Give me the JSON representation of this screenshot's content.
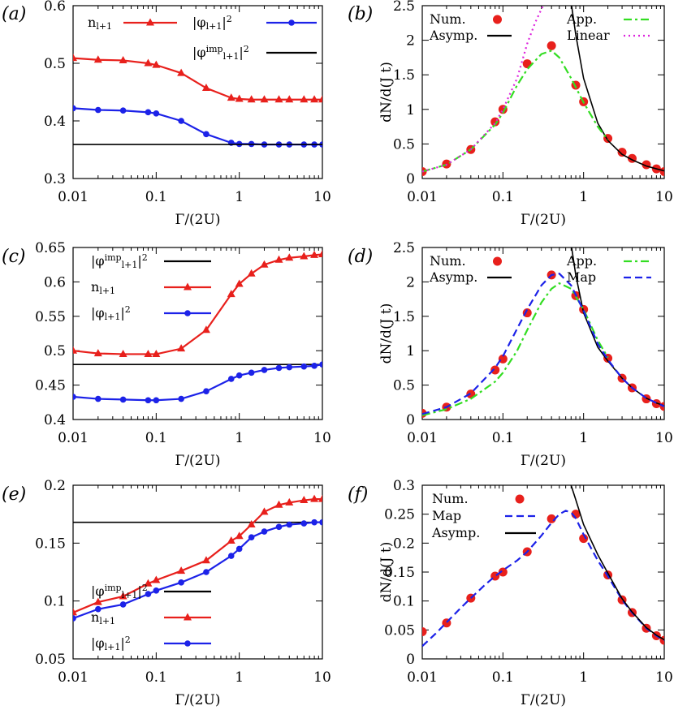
{
  "chart_data": [
    {
      "panel_label": "(a)",
      "type": "line",
      "xscale": "log",
      "xlim": [
        0.01,
        10
      ],
      "ylim": [
        0.3,
        0.6
      ],
      "xticks": [
        "0.01",
        "0.1",
        "1",
        "10"
      ],
      "yticks": [
        "0.3",
        "0.4",
        "0.5",
        "0.6"
      ],
      "xlabel": "Γ/(2U)",
      "ylabel": "",
      "legend": [
        "n_{l+1}",
        "|φ_{l+1}|^2",
        "|φ^{imp}_{l+1}|^2"
      ],
      "series": [
        {
          "name": "n_{l+1}",
          "color": "#e8201c",
          "marker": "triangle",
          "x": [
            0.01,
            0.02,
            0.04,
            0.08,
            0.1,
            0.2,
            0.4,
            0.8,
            1,
            1.4,
            2,
            3,
            4,
            6,
            8,
            10
          ],
          "y": [
            0.509,
            0.506,
            0.505,
            0.5,
            0.497,
            0.483,
            0.457,
            0.44,
            0.438,
            0.437,
            0.437,
            0.437,
            0.437,
            0.437,
            0.437,
            0.437
          ]
        },
        {
          "name": "|φ_{l+1}|^2",
          "color": "#1c22e8",
          "marker": "circle",
          "x": [
            0.01,
            0.02,
            0.04,
            0.08,
            0.1,
            0.2,
            0.4,
            0.8,
            1,
            1.4,
            2,
            3,
            4,
            6,
            8,
            10
          ],
          "y": [
            0.422,
            0.419,
            0.418,
            0.415,
            0.413,
            0.4,
            0.377,
            0.362,
            0.36,
            0.36,
            0.359,
            0.359,
            0.359,
            0.359,
            0.359,
            0.359
          ]
        },
        {
          "name": "|φ^{imp}_{l+1}|^2",
          "color": "#000000",
          "marker": "none",
          "x": [
            0.01,
            10
          ],
          "y": [
            0.359,
            0.359
          ]
        }
      ]
    },
    {
      "panel_label": "(b)",
      "type": "line",
      "xscale": "log",
      "xlim": [
        0.01,
        10
      ],
      "ylim": [
        0,
        2.5
      ],
      "xticks": [
        "0.01",
        "0.1",
        "1",
        "10"
      ],
      "yticks": [
        "0",
        "0.5",
        "1",
        "1.5",
        "2",
        "2.5"
      ],
      "xlabel": "Γ/(2U)",
      "ylabel": "dN/d(J t)",
      "legend": [
        "Num.",
        "Asymp.",
        "App.",
        "Linear"
      ],
      "series": [
        {
          "name": "Num.",
          "color": "#e8201c",
          "marker": "circle",
          "x": [
            0.01,
            0.02,
            0.04,
            0.08,
            0.1,
            0.2,
            0.4,
            0.8,
            1,
            2,
            3,
            4,
            6,
            8,
            10
          ],
          "y": [
            0.1,
            0.21,
            0.42,
            0.82,
            1.0,
            1.66,
            1.92,
            1.35,
            1.11,
            0.58,
            0.38,
            0.29,
            0.2,
            0.14,
            0.1
          ]
        },
        {
          "name": "Asymp.",
          "color": "#000000",
          "marker": "none",
          "x": [
            0.7,
            0.8,
            1,
            1.5,
            2,
            3,
            4,
            6,
            8,
            10
          ],
          "y": [
            2.55,
            2.08,
            1.45,
            0.8,
            0.55,
            0.35,
            0.27,
            0.18,
            0.14,
            0.11
          ]
        },
        {
          "name": "App.",
          "color": "#33dd22",
          "marker": "none",
          "dash": "dashdot",
          "x": [
            0.01,
            0.02,
            0.04,
            0.08,
            0.1,
            0.15,
            0.2,
            0.3,
            0.4,
            0.5,
            0.7,
            1,
            1.5,
            2
          ],
          "y": [
            0.1,
            0.2,
            0.42,
            0.78,
            0.95,
            1.35,
            1.58,
            1.8,
            1.85,
            1.75,
            1.45,
            1.1,
            0.75,
            0.56
          ]
        },
        {
          "name": "Linear",
          "color": "#dd22dd",
          "marker": "none",
          "dash": "dot",
          "x": [
            0.01,
            0.02,
            0.04,
            0.08,
            0.1,
            0.15,
            0.2,
            0.25,
            0.3,
            0.35
          ],
          "y": [
            0.1,
            0.2,
            0.42,
            0.8,
            1.0,
            1.45,
            1.95,
            2.25,
            2.45,
            2.6
          ]
        }
      ]
    },
    {
      "panel_label": "(c)",
      "type": "line",
      "xscale": "log",
      "xlim": [
        0.01,
        10
      ],
      "ylim": [
        0.4,
        0.65
      ],
      "xticks": [
        "0.01",
        "0.1",
        "1",
        "10"
      ],
      "yticks": [
        "0.4",
        "0.45",
        "0.5",
        "0.55",
        "0.6",
        "0.65"
      ],
      "xlabel": "Γ/(2U)",
      "ylabel": "",
      "legend": [
        "|φ^{imp}_{l+1}|^2",
        "n_{l+1}",
        "|φ_{l+1}|^2"
      ],
      "series": [
        {
          "name": "|φ^{imp}_{l+1}|^2",
          "color": "#000000",
          "marker": "none",
          "x": [
            0.01,
            10
          ],
          "y": [
            0.48,
            0.48
          ]
        },
        {
          "name": "n_{l+1}",
          "color": "#e8201c",
          "marker": "triangle",
          "x": [
            0.01,
            0.02,
            0.04,
            0.08,
            0.1,
            0.2,
            0.4,
            0.8,
            1,
            1.4,
            2,
            3,
            4,
            6,
            8,
            10
          ],
          "y": [
            0.5,
            0.496,
            0.495,
            0.495,
            0.495,
            0.503,
            0.53,
            0.582,
            0.597,
            0.612,
            0.625,
            0.632,
            0.635,
            0.637,
            0.639,
            0.64
          ]
        },
        {
          "name": "|φ_{l+1}|^2",
          "color": "#1c22e8",
          "marker": "circle",
          "x": [
            0.01,
            0.02,
            0.04,
            0.08,
            0.1,
            0.2,
            0.4,
            0.8,
            1,
            1.4,
            2,
            3,
            4,
            6,
            8,
            10
          ],
          "y": [
            0.433,
            0.43,
            0.429,
            0.428,
            0.428,
            0.43,
            0.441,
            0.459,
            0.464,
            0.468,
            0.472,
            0.475,
            0.476,
            0.477,
            0.478,
            0.48
          ]
        }
      ]
    },
    {
      "panel_label": "(d)",
      "type": "line",
      "xscale": "log",
      "xlim": [
        0.01,
        10
      ],
      "ylim": [
        0,
        2.5
      ],
      "xticks": [
        "0.01",
        "0.1",
        "1",
        "10"
      ],
      "yticks": [
        "0",
        "0.5",
        "1",
        "1.5",
        "2",
        "2.5"
      ],
      "xlabel": "Γ/(2U)",
      "ylabel": "dN/d(J t)",
      "legend": [
        "Num.",
        "Asymp.",
        "App.",
        "Map"
      ],
      "series": [
        {
          "name": "Num.",
          "color": "#e8201c",
          "marker": "circle",
          "x": [
            0.01,
            0.02,
            0.04,
            0.08,
            0.1,
            0.2,
            0.4,
            0.8,
            1,
            2,
            3,
            4,
            6,
            8,
            10
          ],
          "y": [
            0.09,
            0.18,
            0.37,
            0.72,
            0.88,
            1.55,
            2.1,
            1.8,
            1.6,
            0.89,
            0.6,
            0.46,
            0.3,
            0.23,
            0.19
          ]
        },
        {
          "name": "Asymp.",
          "color": "#000000",
          "marker": "none",
          "x": [
            0.7,
            0.8,
            1,
            1.5,
            2,
            3,
            4,
            6,
            8,
            10
          ],
          "y": [
            2.55,
            2.1,
            1.55,
            1.05,
            0.85,
            0.6,
            0.46,
            0.31,
            0.24,
            0.2
          ]
        },
        {
          "name": "App.",
          "color": "#33dd22",
          "marker": "none",
          "dash": "dashdot",
          "x": [
            0.01,
            0.02,
            0.04,
            0.08,
            0.1,
            0.15,
            0.2,
            0.3,
            0.4,
            0.5,
            0.7,
            1,
            1.5,
            2
          ],
          "y": [
            0.06,
            0.15,
            0.3,
            0.55,
            0.68,
            1.0,
            1.3,
            1.7,
            1.9,
            1.98,
            1.9,
            1.6,
            1.15,
            0.9
          ]
        },
        {
          "name": "Map",
          "color": "#1c22e8",
          "marker": "none",
          "dash": "dash",
          "x": [
            0.01,
            0.02,
            0.04,
            0.08,
            0.1,
            0.15,
            0.2,
            0.3,
            0.4,
            0.5,
            0.7,
            1,
            1.5,
            2,
            3,
            4,
            6,
            8,
            10
          ],
          "y": [
            0.08,
            0.18,
            0.38,
            0.75,
            0.92,
            1.32,
            1.6,
            1.95,
            2.1,
            2.12,
            1.95,
            1.58,
            1.1,
            0.87,
            0.6,
            0.46,
            0.31,
            0.24,
            0.19
          ]
        }
      ]
    },
    {
      "panel_label": "(e)",
      "type": "line",
      "xscale": "log",
      "xlim": [
        0.01,
        10
      ],
      "ylim": [
        0.05,
        0.2
      ],
      "xticks": [
        "0.01",
        "0.1",
        "1",
        "10"
      ],
      "yticks": [
        "0.05",
        "0.1",
        "0.15",
        "0.2"
      ],
      "xlabel": "Γ/(2U)",
      "ylabel": "",
      "legend": [
        "|φ^{imp}_{l+1}|^2",
        "n_{l+1}",
        "|φ_{l+1}|^2"
      ],
      "series": [
        {
          "name": "|φ^{imp}_{l+1}|^2",
          "color": "#000000",
          "marker": "none",
          "x": [
            0.01,
            10
          ],
          "y": [
            0.168,
            0.168
          ]
        },
        {
          "name": "n_{l+1}",
          "color": "#e8201c",
          "marker": "triangle",
          "x": [
            0.01,
            0.02,
            0.04,
            0.08,
            0.1,
            0.2,
            0.4,
            0.8,
            1,
            1.4,
            2,
            3,
            4,
            6,
            8,
            10
          ],
          "y": [
            0.09,
            0.099,
            0.104,
            0.115,
            0.118,
            0.126,
            0.135,
            0.152,
            0.156,
            0.166,
            0.177,
            0.183,
            0.185,
            0.187,
            0.188,
            0.188
          ]
        },
        {
          "name": "|φ_{l+1}|^2",
          "color": "#1c22e8",
          "marker": "circle",
          "x": [
            0.01,
            0.02,
            0.04,
            0.08,
            0.1,
            0.2,
            0.4,
            0.8,
            1,
            1.4,
            2,
            3,
            4,
            6,
            8,
            10
          ],
          "y": [
            0.085,
            0.093,
            0.097,
            0.106,
            0.109,
            0.116,
            0.125,
            0.139,
            0.145,
            0.155,
            0.16,
            0.164,
            0.166,
            0.167,
            0.168,
            0.168
          ]
        }
      ]
    },
    {
      "panel_label": "(f)",
      "type": "line",
      "xscale": "log",
      "xlim": [
        0.01,
        10
      ],
      "ylim": [
        0,
        0.3
      ],
      "xticks": [
        "0.01",
        "0.1",
        "1",
        "10"
      ],
      "yticks": [
        "0",
        "0.05",
        "0.1",
        "0.15",
        "0.2",
        "0.25",
        "0.3"
      ],
      "xlabel": "Γ/(2U)",
      "ylabel": "dN/d(J t)",
      "legend": [
        "Num.",
        "Map",
        "Asymp."
      ],
      "series": [
        {
          "name": "Num.",
          "color": "#e8201c",
          "marker": "circle",
          "x": [
            0.01,
            0.02,
            0.04,
            0.08,
            0.1,
            0.2,
            0.4,
            0.8,
            1,
            2,
            3,
            4,
            6,
            8,
            10
          ],
          "y": [
            0.047,
            0.062,
            0.105,
            0.143,
            0.15,
            0.185,
            0.242,
            0.25,
            0.208,
            0.145,
            0.102,
            0.08,
            0.053,
            0.04,
            0.032
          ]
        },
        {
          "name": "Map",
          "color": "#1c22e8",
          "marker": "none",
          "dash": "dash",
          "x": [
            0.01,
            0.015,
            0.02,
            0.03,
            0.04,
            0.06,
            0.08,
            0.1,
            0.15,
            0.2,
            0.3,
            0.4,
            0.5,
            0.6,
            0.7,
            0.8,
            1,
            1.5,
            2,
            3,
            4,
            6,
            8,
            10
          ],
          "y": [
            0.022,
            0.045,
            0.063,
            0.088,
            0.105,
            0.128,
            0.143,
            0.153,
            0.17,
            0.185,
            0.213,
            0.235,
            0.25,
            0.256,
            0.253,
            0.243,
            0.215,
            0.17,
            0.143,
            0.102,
            0.08,
            0.053,
            0.04,
            0.032
          ]
        },
        {
          "name": "Asymp.",
          "color": "#000000",
          "marker": "none",
          "x": [
            0.7,
            0.8,
            1,
            1.5,
            2,
            3,
            4,
            6,
            8,
            10
          ],
          "y": [
            0.3,
            0.275,
            0.232,
            0.18,
            0.148,
            0.104,
            0.081,
            0.054,
            0.041,
            0.033
          ]
        }
      ]
    }
  ]
}
